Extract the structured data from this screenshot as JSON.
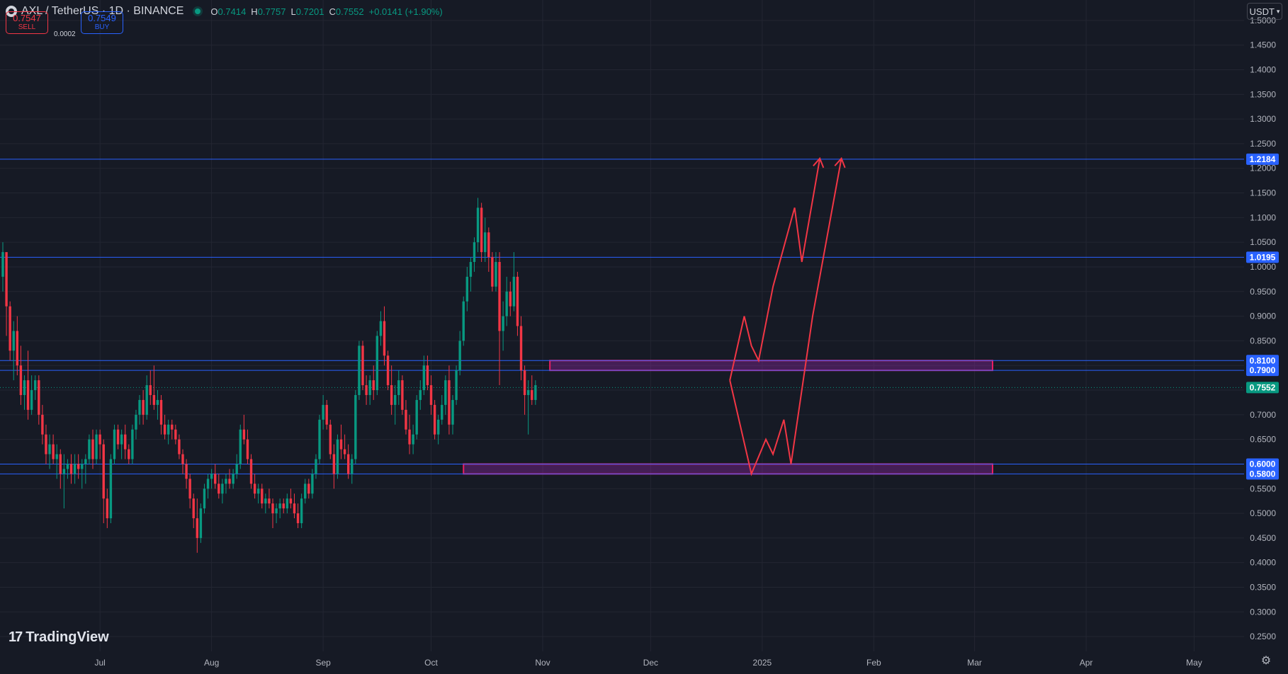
{
  "header": {
    "symbol": "AXL / TetherUS · 1D · BINANCE",
    "ohlc": [
      {
        "k": "O",
        "v": "0.7414"
      },
      {
        "k": "H",
        "v": "0.7757"
      },
      {
        "k": "L",
        "v": "0.7201"
      },
      {
        "k": "C",
        "v": "0.7552"
      },
      {
        "k": "",
        "v": "+0.0141 (+1.90%)"
      }
    ]
  },
  "trade": {
    "sell_price": "0.7547",
    "sell_label": "SELL",
    "spread": "0.0002",
    "buy_price": "0.7549",
    "buy_label": "BUY"
  },
  "currency_button": "USDT",
  "logo_text": "TradingView",
  "colors": {
    "background": "#161a25",
    "grid": "#232632",
    "up": "#089981",
    "down": "#f23645",
    "level_line": "#2962ff",
    "zone": "#e91e63",
    "path": "#f23645"
  },
  "chart_data": {
    "type": "candlestick",
    "title": "",
    "xlabel": "",
    "ylabel": "",
    "ylim": [
      0.22,
      1.53
    ],
    "y_ticks": [
      "1.5000",
      "1.4500",
      "1.4000",
      "1.3500",
      "1.3000",
      "1.2500",
      "1.2000",
      "1.1500",
      "1.1000",
      "1.0500",
      "1.0000",
      "0.9500",
      "0.9000",
      "0.8500",
      "0.8000",
      "0.7500",
      "0.7000",
      "0.6500",
      "0.6000",
      "0.5500",
      "0.5000",
      "0.4500",
      "0.4000",
      "0.3500",
      "0.3000",
      "0.2500"
    ],
    "x_ticks": [
      {
        "label": "Jul",
        "day": 27
      },
      {
        "label": "Aug",
        "day": 58
      },
      {
        "label": "Sep",
        "day": 89
      },
      {
        "label": "Oct",
        "day": 119
      },
      {
        "label": "Nov",
        "day": 150
      },
      {
        "label": "Dec",
        "day": 180
      },
      {
        "label": "2025",
        "day": 211
      },
      {
        "label": "Feb",
        "day": 242
      },
      {
        "label": "Mar",
        "day": 270
      },
      {
        "label": "Apr",
        "day": 301
      },
      {
        "label": "May",
        "day": 331
      }
    ],
    "horizontal_levels": [
      {
        "value": 1.2184,
        "label": "1.2184"
      },
      {
        "value": 1.0195,
        "label": "1.0195"
      },
      {
        "value": 0.81,
        "label": "0.8100"
      },
      {
        "value": 0.79,
        "label": "0.7900"
      },
      {
        "value": 0.6,
        "label": "0.6000"
      },
      {
        "value": 0.58,
        "label": "0.5800"
      }
    ],
    "current_price": {
      "value": 0.7552,
      "label": "0.7552"
    },
    "zones": [
      {
        "day_from": 152,
        "day_to": 275,
        "top": 0.81,
        "bottom": 0.79
      },
      {
        "day_from": 128,
        "day_to": 275,
        "top": 0.6,
        "bottom": 0.58
      }
    ],
    "projection_paths": [
      [
        [
          202,
          0.77
        ],
        [
          206,
          0.9
        ],
        [
          208,
          0.84
        ],
        [
          210,
          0.81
        ],
        [
          214,
          0.96
        ],
        [
          220,
          1.12
        ],
        [
          222,
          1.01
        ],
        [
          227,
          1.22
        ]
      ],
      [
        [
          202,
          0.77
        ],
        [
          208,
          0.58
        ],
        [
          212,
          0.65
        ],
        [
          214,
          0.62
        ],
        [
          217,
          0.69
        ],
        [
          219,
          0.6
        ],
        [
          225,
          0.9
        ],
        [
          233,
          1.22
        ]
      ]
    ],
    "candles": {
      "fields": [
        "o",
        "h",
        "l",
        "c"
      ],
      "start_day": 0,
      "values": [
        [
          0.98,
          1.05,
          0.95,
          1.03
        ],
        [
          1.03,
          1.02,
          0.86,
          0.92
        ],
        [
          0.92,
          0.93,
          0.81,
          0.83
        ],
        [
          0.83,
          0.89,
          0.77,
          0.87
        ],
        [
          0.87,
          0.9,
          0.78,
          0.8
        ],
        [
          0.8,
          0.84,
          0.72,
          0.74
        ],
        [
          0.74,
          0.78,
          0.71,
          0.77
        ],
        [
          0.77,
          0.83,
          0.69,
          0.71
        ],
        [
          0.71,
          0.78,
          0.7,
          0.75
        ],
        [
          0.75,
          0.78,
          0.73,
          0.77
        ],
        [
          0.77,
          0.78,
          0.68,
          0.7
        ],
        [
          0.7,
          0.72,
          0.64,
          0.66
        ],
        [
          0.66,
          0.68,
          0.6,
          0.62
        ],
        [
          0.62,
          0.66,
          0.59,
          0.64
        ],
        [
          0.64,
          0.66,
          0.6,
          0.61
        ],
        [
          0.61,
          0.64,
          0.57,
          0.62
        ],
        [
          0.62,
          0.63,
          0.55,
          0.58
        ],
        [
          0.58,
          0.62,
          0.51,
          0.59
        ],
        [
          0.59,
          0.61,
          0.57,
          0.6
        ],
        [
          0.6,
          0.62,
          0.56,
          0.58
        ],
        [
          0.58,
          0.62,
          0.56,
          0.6
        ],
        [
          0.6,
          0.62,
          0.57,
          0.59
        ],
        [
          0.59,
          0.61,
          0.55,
          0.6
        ],
        [
          0.6,
          0.62,
          0.56,
          0.61
        ],
        [
          0.61,
          0.66,
          0.6,
          0.65
        ],
        [
          0.65,
          0.67,
          0.59,
          0.61
        ],
        [
          0.61,
          0.67,
          0.6,
          0.66
        ],
        [
          0.66,
          0.67,
          0.61,
          0.64
        ],
        [
          0.64,
          0.65,
          0.48,
          0.53
        ],
        [
          0.53,
          0.55,
          0.47,
          0.49
        ],
        [
          0.49,
          0.62,
          0.48,
          0.61
        ],
        [
          0.61,
          0.68,
          0.6,
          0.67
        ],
        [
          0.67,
          0.68,
          0.63,
          0.64
        ],
        [
          0.64,
          0.67,
          0.61,
          0.66
        ],
        [
          0.66,
          0.68,
          0.61,
          0.63
        ],
        [
          0.63,
          0.64,
          0.6,
          0.61
        ],
        [
          0.61,
          0.68,
          0.6,
          0.67
        ],
        [
          0.67,
          0.71,
          0.65,
          0.7
        ],
        [
          0.7,
          0.74,
          0.68,
          0.73
        ],
        [
          0.73,
          0.75,
          0.68,
          0.7
        ],
        [
          0.7,
          0.78,
          0.69,
          0.76
        ],
        [
          0.76,
          0.79,
          0.72,
          0.74
        ],
        [
          0.74,
          0.8,
          0.71,
          0.72
        ],
        [
          0.72,
          0.75,
          0.69,
          0.73
        ],
        [
          0.73,
          0.74,
          0.66,
          0.68
        ],
        [
          0.68,
          0.7,
          0.65,
          0.66
        ],
        [
          0.66,
          0.69,
          0.64,
          0.68
        ],
        [
          0.68,
          0.69,
          0.65,
          0.67
        ],
        [
          0.67,
          0.68,
          0.64,
          0.65
        ],
        [
          0.65,
          0.66,
          0.61,
          0.62
        ],
        [
          0.62,
          0.63,
          0.58,
          0.6
        ],
        [
          0.6,
          0.61,
          0.55,
          0.57
        ],
        [
          0.57,
          0.58,
          0.51,
          0.53
        ],
        [
          0.53,
          0.54,
          0.47,
          0.49
        ],
        [
          0.49,
          0.53,
          0.42,
          0.45
        ],
        [
          0.45,
          0.52,
          0.44,
          0.51
        ],
        [
          0.51,
          0.56,
          0.5,
          0.55
        ],
        [
          0.55,
          0.58,
          0.53,
          0.57
        ],
        [
          0.57,
          0.59,
          0.55,
          0.58
        ],
        [
          0.58,
          0.6,
          0.55,
          0.56
        ],
        [
          0.56,
          0.58,
          0.53,
          0.54
        ],
        [
          0.54,
          0.57,
          0.52,
          0.56
        ],
        [
          0.56,
          0.58,
          0.54,
          0.57
        ],
        [
          0.57,
          0.59,
          0.55,
          0.56
        ],
        [
          0.56,
          0.59,
          0.55,
          0.58
        ],
        [
          0.58,
          0.62,
          0.57,
          0.6
        ],
        [
          0.6,
          0.68,
          0.59,
          0.67
        ],
        [
          0.67,
          0.7,
          0.64,
          0.65
        ],
        [
          0.65,
          0.67,
          0.6,
          0.61
        ],
        [
          0.61,
          0.62,
          0.55,
          0.56
        ],
        [
          0.56,
          0.58,
          0.53,
          0.54
        ],
        [
          0.54,
          0.56,
          0.52,
          0.55
        ],
        [
          0.55,
          0.56,
          0.51,
          0.52
        ],
        [
          0.52,
          0.54,
          0.5,
          0.53
        ],
        [
          0.53,
          0.55,
          0.51,
          0.52
        ],
        [
          0.52,
          0.53,
          0.47,
          0.5
        ],
        [
          0.5,
          0.52,
          0.48,
          0.51
        ],
        [
          0.51,
          0.53,
          0.49,
          0.52
        ],
        [
          0.52,
          0.53,
          0.5,
          0.51
        ],
        [
          0.51,
          0.54,
          0.5,
          0.53
        ],
        [
          0.53,
          0.55,
          0.51,
          0.52
        ],
        [
          0.52,
          0.54,
          0.49,
          0.5
        ],
        [
          0.5,
          0.52,
          0.47,
          0.48
        ],
        [
          0.48,
          0.54,
          0.47,
          0.53
        ],
        [
          0.53,
          0.57,
          0.52,
          0.56
        ],
        [
          0.56,
          0.57,
          0.53,
          0.54
        ],
        [
          0.54,
          0.59,
          0.53,
          0.58
        ],
        [
          0.58,
          0.62,
          0.57,
          0.61
        ],
        [
          0.61,
          0.7,
          0.6,
          0.69
        ],
        [
          0.69,
          0.74,
          0.67,
          0.72
        ],
        [
          0.72,
          0.73,
          0.67,
          0.68
        ],
        [
          0.68,
          0.69,
          0.61,
          0.62
        ],
        [
          0.62,
          0.64,
          0.55,
          0.58
        ],
        [
          0.58,
          0.66,
          0.57,
          0.65
        ],
        [
          0.65,
          0.68,
          0.61,
          0.63
        ],
        [
          0.63,
          0.66,
          0.61,
          0.62
        ],
        [
          0.62,
          0.64,
          0.57,
          0.58
        ],
        [
          0.58,
          0.62,
          0.56,
          0.61
        ],
        [
          0.61,
          0.75,
          0.6,
          0.74
        ],
        [
          0.74,
          0.85,
          0.73,
          0.84
        ],
        [
          0.84,
          0.85,
          0.75,
          0.76
        ],
        [
          0.76,
          0.78,
          0.72,
          0.74
        ],
        [
          0.74,
          0.78,
          0.72,
          0.77
        ],
        [
          0.77,
          0.8,
          0.73,
          0.75
        ],
        [
          0.75,
          0.87,
          0.74,
          0.86
        ],
        [
          0.86,
          0.91,
          0.84,
          0.89
        ],
        [
          0.89,
          0.92,
          0.8,
          0.82
        ],
        [
          0.82,
          0.83,
          0.75,
          0.76
        ],
        [
          0.76,
          0.8,
          0.7,
          0.72
        ],
        [
          0.72,
          0.76,
          0.68,
          0.74
        ],
        [
          0.74,
          0.79,
          0.72,
          0.77
        ],
        [
          0.77,
          0.78,
          0.7,
          0.71
        ],
        [
          0.71,
          0.73,
          0.66,
          0.67
        ],
        [
          0.67,
          0.7,
          0.62,
          0.64
        ],
        [
          0.64,
          0.68,
          0.62,
          0.66
        ],
        [
          0.66,
          0.74,
          0.65,
          0.73
        ],
        [
          0.73,
          0.77,
          0.71,
          0.75
        ],
        [
          0.75,
          0.82,
          0.74,
          0.8
        ],
        [
          0.8,
          0.82,
          0.75,
          0.76
        ],
        [
          0.76,
          0.78,
          0.7,
          0.72
        ],
        [
          0.72,
          0.73,
          0.65,
          0.66
        ],
        [
          0.66,
          0.7,
          0.64,
          0.69
        ],
        [
          0.69,
          0.74,
          0.68,
          0.72
        ],
        [
          0.72,
          0.78,
          0.7,
          0.77
        ],
        [
          0.77,
          0.8,
          0.66,
          0.68
        ],
        [
          0.68,
          0.74,
          0.66,
          0.73
        ],
        [
          0.73,
          0.8,
          0.72,
          0.79
        ],
        [
          0.79,
          0.87,
          0.78,
          0.85
        ],
        [
          0.85,
          0.94,
          0.84,
          0.93
        ],
        [
          0.93,
          1.0,
          0.91,
          0.98
        ],
        [
          0.98,
          1.02,
          0.95,
          1.01
        ],
        [
          1.01,
          1.06,
          0.99,
          1.05
        ],
        [
          1.05,
          1.14,
          1.03,
          1.12
        ],
        [
          1.12,
          1.13,
          1.01,
          1.03
        ],
        [
          1.03,
          1.1,
          1.01,
          1.07
        ],
        [
          1.07,
          1.08,
          0.99,
          1.02
        ],
        [
          1.02,
          1.03,
          0.95,
          0.96
        ],
        [
          0.96,
          1.03,
          0.95,
          1.01
        ],
        [
          1.01,
          1.03,
          0.76,
          0.87
        ],
        [
          0.87,
          0.93,
          0.83,
          0.9
        ],
        [
          0.9,
          0.98,
          0.88,
          0.95
        ],
        [
          0.95,
          0.97,
          0.9,
          0.92
        ],
        [
          0.92,
          1.03,
          0.91,
          0.98
        ],
        [
          0.98,
          0.99,
          0.86,
          0.88
        ],
        [
          0.88,
          0.9,
          0.77,
          0.79
        ],
        [
          0.79,
          0.8,
          0.7,
          0.74
        ],
        [
          0.74,
          0.77,
          0.66,
          0.75
        ],
        [
          0.75,
          0.78,
          0.72,
          0.73
        ],
        [
          0.73,
          0.77,
          0.72,
          0.76
        ]
      ]
    }
  }
}
